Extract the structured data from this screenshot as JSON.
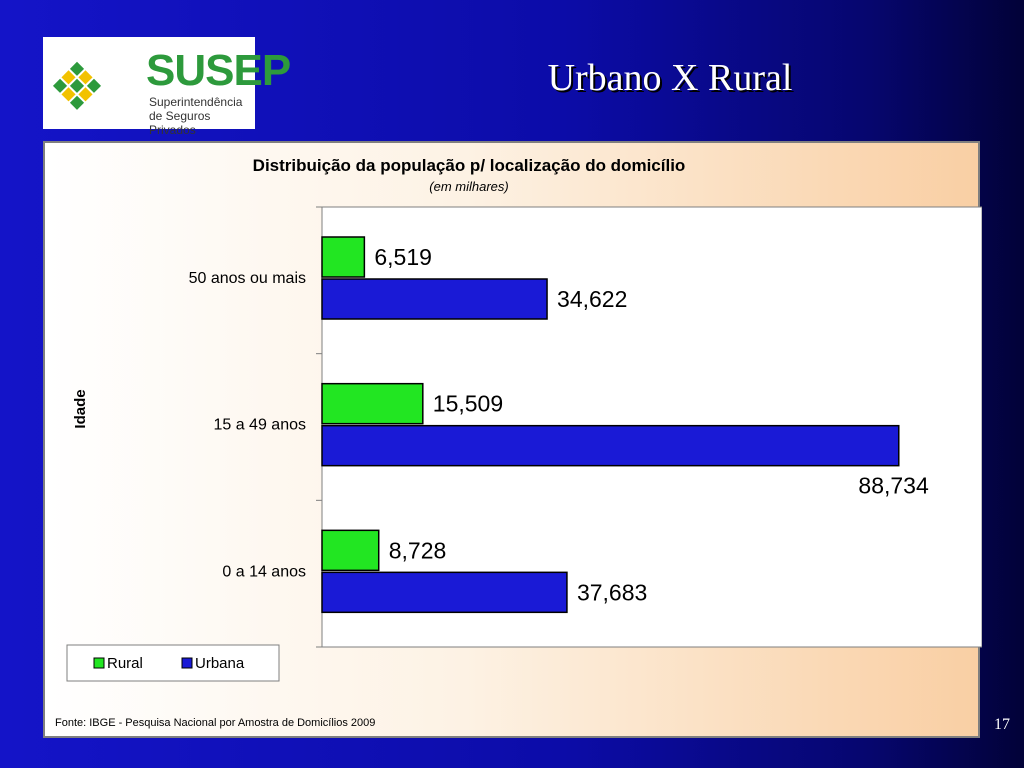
{
  "logo": {
    "name": "SUSEP",
    "subtitle_line1": "Superintendência",
    "subtitle_line2": "de Seguros Privados",
    "colors": {
      "green": "#2d9a3c",
      "yellow": "#f2c200"
    }
  },
  "slide": {
    "title": "Urbano X Rural",
    "page_number": "17"
  },
  "chart_data": {
    "type": "bar",
    "orientation": "horizontal",
    "title": "Distribuição da população p/ localização do domicílio",
    "subtitle": "(em milhares)",
    "ylabel": "Idade",
    "xlabel": "",
    "categories": [
      "50 anos ou mais",
      "15 a 49 anos",
      "0 a 14 anos"
    ],
    "series": [
      {
        "name": "Rural",
        "color": "#22e622",
        "values": [
          6.519,
          15.509,
          8.728
        ],
        "labels": [
          "6,519",
          "15,509",
          "8,728"
        ]
      },
      {
        "name": "Urbana",
        "color": "#1a1ad6",
        "values": [
          34.622,
          88.734,
          37.683
        ],
        "labels": [
          "34,622",
          "88,734",
          "37,683"
        ]
      }
    ],
    "xlim": [
      0,
      100
    ],
    "grid": false,
    "legend": "bottom-left",
    "source": "Fonte: IBGE - Pesquisa Nacional por Amostra de Domicílios 2009"
  }
}
